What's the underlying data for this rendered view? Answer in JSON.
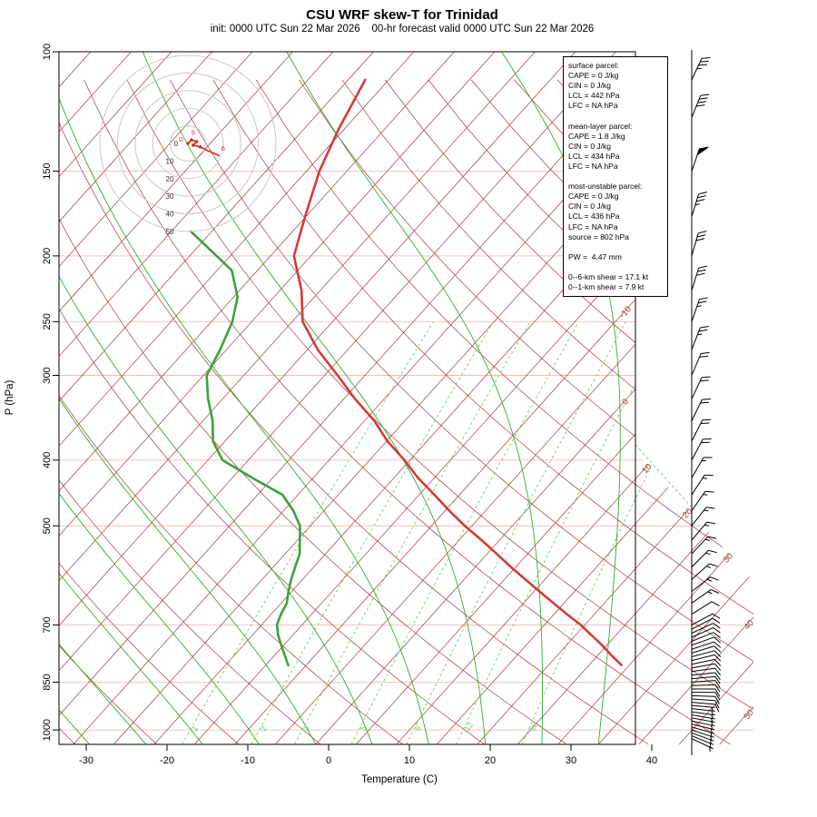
{
  "chart_data": {
    "type": "skewt-log-p sounding",
    "title": "CSU WRF skew-T for Trinidad",
    "subtitle": "init: 0000 UTC Sun 22 Mar 2026    00-hr forecast valid 0000 UTC Sun 22 Mar 2026",
    "axes": {
      "pressure_label": "P (hPa)",
      "temp_label": "Temperature (C)",
      "pressure_ticks": [
        100,
        150,
        200,
        250,
        300,
        400,
        500,
        700,
        850,
        1000
      ],
      "temp_ticks": [
        -30,
        -20,
        -10,
        0,
        10,
        20,
        30,
        40
      ],
      "isotherm_labels_right": [
        -10,
        0,
        10,
        20,
        30,
        40,
        50
      ],
      "mixing_ratio_labels": [
        1,
        2,
        3,
        5,
        8,
        12,
        20
      ],
      "pressure_range": [
        100,
        1050
      ],
      "grid": true
    },
    "sounding": {
      "temperature_p_T": [
        [
          802,
          29
        ],
        [
          775,
          26.6
        ],
        [
          750,
          24.4
        ],
        [
          725,
          22
        ],
        [
          700,
          19.5
        ],
        [
          675,
          16.6
        ],
        [
          650,
          13.7
        ],
        [
          625,
          10.7
        ],
        [
          600,
          7.6
        ],
        [
          575,
          4.4
        ],
        [
          550,
          1.2
        ],
        [
          525,
          -2.2
        ],
        [
          500,
          -5.9
        ],
        [
          475,
          -9.5
        ],
        [
          450,
          -13.1
        ],
        [
          425,
          -17
        ],
        [
          400,
          -20.7
        ],
        [
          375,
          -24.9
        ],
        [
          350,
          -28.8
        ],
        [
          325,
          -33.6
        ],
        [
          300,
          -38.4
        ],
        [
          275,
          -43.7
        ],
        [
          250,
          -48.7
        ],
        [
          225,
          -52.3
        ],
        [
          200,
          -57.1
        ],
        [
          175,
          -60.1
        ],
        [
          150,
          -63.4
        ],
        [
          130,
          -65.7
        ],
        [
          110,
          -67.9
        ]
      ],
      "dewpoint_p_Td": [
        [
          803,
          -12.2
        ],
        [
          775,
          -13.8
        ],
        [
          750,
          -15.3
        ],
        [
          725,
          -16.8
        ],
        [
          700,
          -18.1
        ],
        [
          675,
          -18.8
        ],
        [
          650,
          -19.3
        ],
        [
          625,
          -20.4
        ],
        [
          600,
          -21.4
        ],
        [
          575,
          -22.3
        ],
        [
          550,
          -23.2
        ],
        [
          525,
          -24.7
        ],
        [
          500,
          -26.3
        ],
        [
          475,
          -28.8
        ],
        [
          450,
          -31.9
        ],
        [
          425,
          -37.5
        ],
        [
          400,
          -43.2
        ],
        [
          375,
          -46.5
        ],
        [
          350,
          -48.8
        ],
        [
          325,
          -51.8
        ],
        [
          300,
          -54.6
        ],
        [
          275,
          -55.8
        ],
        [
          250,
          -57.4
        ],
        [
          230,
          -59.5
        ],
        [
          210,
          -63.2
        ],
        [
          184,
          -72.6
        ]
      ]
    },
    "winds_p_spd_dir": [
      [
        1030,
        5,
        115
      ],
      [
        1020,
        5,
        112
      ],
      [
        1010,
        5,
        110
      ],
      [
        1000,
        6,
        108
      ],
      [
        990,
        6,
        106
      ],
      [
        980,
        6,
        104
      ],
      [
        970,
        6,
        102
      ],
      [
        960,
        7,
        100
      ],
      [
        950,
        7,
        100
      ],
      [
        940,
        7,
        98
      ],
      [
        930,
        7,
        96
      ],
      [
        920,
        7,
        95
      ],
      [
        910,
        8,
        95
      ],
      [
        900,
        8,
        94
      ],
      [
        890,
        8,
        92
      ],
      [
        880,
        8,
        90
      ],
      [
        870,
        8,
        90
      ],
      [
        860,
        8,
        88
      ],
      [
        850,
        8,
        86
      ],
      [
        840,
        9,
        85
      ],
      [
        830,
        9,
        84
      ],
      [
        820,
        9,
        82
      ],
      [
        810,
        9,
        80
      ],
      [
        800,
        9,
        78
      ],
      [
        790,
        10,
        76
      ],
      [
        780,
        10,
        75
      ],
      [
        770,
        10,
        73
      ],
      [
        760,
        10,
        72
      ],
      [
        750,
        10,
        70
      ],
      [
        740,
        11,
        68
      ],
      [
        730,
        11,
        66
      ],
      [
        720,
        11,
        65
      ],
      [
        710,
        11,
        63
      ],
      [
        700,
        12,
        62
      ],
      [
        675,
        12,
        58
      ],
      [
        650,
        13,
        55
      ],
      [
        625,
        13,
        52
      ],
      [
        600,
        13,
        48
      ],
      [
        575,
        14,
        45
      ],
      [
        550,
        14,
        43
      ],
      [
        525,
        15,
        40
      ],
      [
        500,
        15,
        38
      ],
      [
        475,
        16,
        35
      ],
      [
        450,
        16,
        33
      ],
      [
        425,
        17,
        30
      ],
      [
        400,
        18,
        28
      ],
      [
        375,
        18,
        27
      ],
      [
        350,
        19,
        26
      ],
      [
        325,
        20,
        25
      ],
      [
        300,
        21,
        23
      ],
      [
        275,
        23,
        21
      ],
      [
        250,
        25,
        19
      ],
      [
        225,
        28,
        17
      ],
      [
        200,
        31,
        16
      ],
      [
        175,
        35,
        17
      ],
      [
        150,
        48,
        19
      ],
      [
        125,
        42,
        22
      ],
      [
        110,
        36,
        25
      ]
    ],
    "hodograph": {
      "ring_values": [
        10,
        20,
        30,
        40,
        50
      ],
      "center_label": "0",
      "trace_u_v_kt": [
        [
          0,
          0
        ],
        [
          2,
          2
        ],
        [
          5,
          1
        ],
        [
          3,
          -1
        ],
        [
          7,
          -2
        ],
        [
          11,
          -4
        ],
        [
          18,
          -7
        ]
      ],
      "point_labels": [
        {
          "t": "0",
          "u": -4,
          "v": 1
        },
        {
          "t": "5",
          "u": 3,
          "v": 5
        },
        {
          "t": "6",
          "u": 20,
          "v": -4
        }
      ]
    },
    "parcel_box": {
      "lines": [
        "surface parcel:",
        "CAPE = 0 J/kg",
        "CIN = 0 J/kg",
        "LCL = 442 hPa",
        "LFC = NA hPa",
        "",
        "mean-layer parcel:",
        "CAPE = 1.8 J/kg",
        "CIN = 0 J/kg",
        "LCL = 434 hPa",
        "LFC = NA hPa",
        "",
        "most-unstable parcel:",
        "CAPE = 0 J/kg",
        "CIN = 0 J/kg",
        "LCL = 436 hPa",
        "LFC = NA hPa",
        "source = 802 hPa",
        "",
        "PW =  4.47 mm",
        "",
        "0--6-km shear = 17.1 kt",
        "0--1-km shear = 7.9 kt"
      ]
    },
    "colors": {
      "isoline_brown_red": "#a33c3c",
      "pressure_grid_pink": "#f1bcbc",
      "moist_adiabat_green": "#2fae2f",
      "mixing_ratio_green": "#69cf69",
      "temperature_trace_red": "#d23b3b",
      "dewpoint_trace_green": "#3aa33a",
      "wind_barb_black": "#000000",
      "hodograph_ring_gray": "#c8c8c8",
      "hodograph_trace_red": "#e02020"
    }
  }
}
